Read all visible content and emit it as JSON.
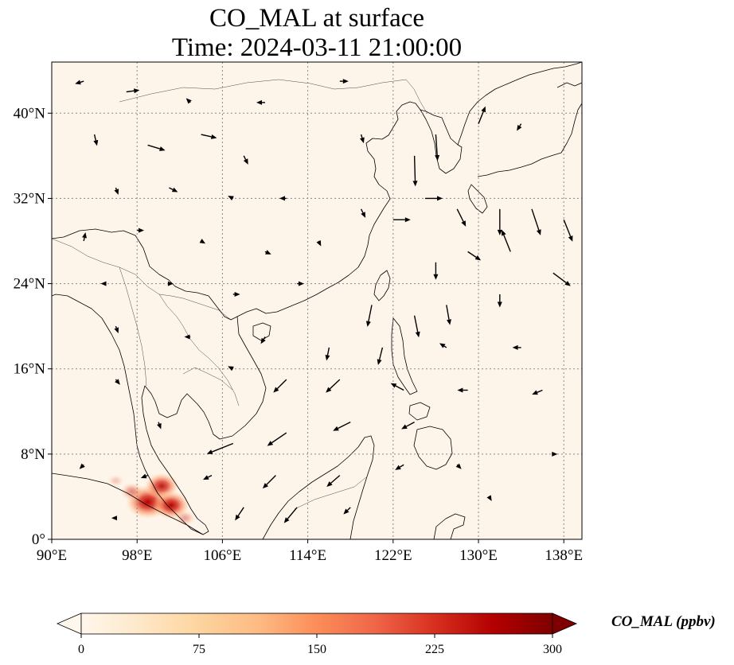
{
  "map": {
    "title_line1": "CO_MAL at surface",
    "title_line2": "Time: 2024-03-11 21:00:00",
    "projection": "PlateCarree",
    "extent": {
      "lon": [
        90,
        139.7
      ],
      "lat": [
        0,
        44.8
      ]
    },
    "x_ticks": [
      {
        "value": 90,
        "label": "90°E"
      },
      {
        "value": 98,
        "label": "98°E"
      },
      {
        "value": 106,
        "label": "106°E"
      },
      {
        "value": 114,
        "label": "114°E"
      },
      {
        "value": 122,
        "label": "122°E"
      },
      {
        "value": 130,
        "label": "130°E"
      },
      {
        "value": 138,
        "label": "138°E"
      }
    ],
    "y_ticks": [
      {
        "value": 0,
        "label": "0°"
      },
      {
        "value": 8,
        "label": "8°N"
      },
      {
        "value": 16,
        "label": "16°N"
      },
      {
        "value": 24,
        "label": "24°N"
      },
      {
        "value": 32,
        "label": "32°N"
      },
      {
        "value": 40,
        "label": "40°N"
      }
    ],
    "gridlines": true,
    "background_color": "#fef5ea",
    "coastline_color": "#000000"
  },
  "colorbar": {
    "label": "CO_MAL (ppbv)",
    "cmap": "OrRd",
    "min": 0,
    "max": 300,
    "extend": "both",
    "ticks": [
      {
        "value": 0,
        "label": "0"
      },
      {
        "value": 75,
        "label": "75"
      },
      {
        "value": 150,
        "label": "150"
      },
      {
        "value": 225,
        "label": "225"
      },
      {
        "value": 300,
        "label": "300"
      }
    ],
    "stops": [
      "#fff7ec",
      "#fee8c8",
      "#fdd49e",
      "#fdbb84",
      "#fc8d59",
      "#ef6548",
      "#d7301f",
      "#b30000",
      "#7f0000"
    ]
  },
  "hotspots": [
    {
      "lon": 99.0,
      "lat": 3.5,
      "value": 260
    },
    {
      "lon": 100.3,
      "lat": 5.0,
      "value": 180
    },
    {
      "lon": 101.2,
      "lat": 3.2,
      "value": 200
    },
    {
      "lon": 97.5,
      "lat": 4.5,
      "value": 90
    },
    {
      "lon": 102.5,
      "lat": 2.0,
      "value": 70
    },
    {
      "lon": 96.0,
      "lat": 5.5,
      "value": 40
    }
  ],
  "wind_vectors": [
    {
      "lon": 93,
      "lat": 43,
      "u": -1,
      "v": -0.3
    },
    {
      "lon": 97,
      "lat": 42,
      "u": 1.5,
      "v": 0.2
    },
    {
      "lon": 103,
      "lat": 41,
      "u": -0.5,
      "v": 0.5
    },
    {
      "lon": 110,
      "lat": 41,
      "u": -1,
      "v": 0
    },
    {
      "lon": 117,
      "lat": 43,
      "u": 1,
      "v": 0
    },
    {
      "lon": 94,
      "lat": 38,
      "u": 0.3,
      "v": -1.3
    },
    {
      "lon": 99,
      "lat": 37,
      "u": 2,
      "v": -0.6
    },
    {
      "lon": 104,
      "lat": 38,
      "u": 1.8,
      "v": -0.4
    },
    {
      "lon": 108,
      "lat": 36,
      "u": 0.5,
      "v": -1
    },
    {
      "lon": 119,
      "lat": 38,
      "u": 0.3,
      "v": -1
    },
    {
      "lon": 124,
      "lat": 36,
      "u": 0.1,
      "v": -3.5
    },
    {
      "lon": 126,
      "lat": 38,
      "u": 0.2,
      "v": -3
    },
    {
      "lon": 130,
      "lat": 39,
      "u": 0.8,
      "v": 2
    },
    {
      "lon": 134,
      "lat": 39,
      "u": -0.5,
      "v": -0.8
    },
    {
      "lon": 96,
      "lat": 33,
      "u": 0.3,
      "v": -0.8
    },
    {
      "lon": 101,
      "lat": 33,
      "u": 1,
      "v": -0.5
    },
    {
      "lon": 107,
      "lat": 32,
      "u": -0.6,
      "v": 0.3
    },
    {
      "lon": 112,
      "lat": 32,
      "u": -0.8,
      "v": 0
    },
    {
      "lon": 119,
      "lat": 31,
      "u": 0.5,
      "v": -1
    },
    {
      "lon": 122,
      "lat": 30,
      "u": 2,
      "v": 0
    },
    {
      "lon": 125,
      "lat": 32,
      "u": 2,
      "v": 0
    },
    {
      "lon": 128,
      "lat": 31,
      "u": 1,
      "v": -2
    },
    {
      "lon": 132,
      "lat": 31,
      "u": 0,
      "v": -3
    },
    {
      "lon": 135,
      "lat": 31,
      "u": 1,
      "v": -3
    },
    {
      "lon": 138,
      "lat": 30,
      "u": 1,
      "v": -2.5
    },
    {
      "lon": 93,
      "lat": 28,
      "u": 0.2,
      "v": 1
    },
    {
      "lon": 98,
      "lat": 29,
      "u": 0.8,
      "v": 0
    },
    {
      "lon": 104,
      "lat": 28,
      "u": 0.5,
      "v": -0.3
    },
    {
      "lon": 110,
      "lat": 27,
      "u": 0.7,
      "v": -0.3
    },
    {
      "lon": 115,
      "lat": 28,
      "u": 0.3,
      "v": -0.6
    },
    {
      "lon": 126,
      "lat": 26,
      "u": 0,
      "v": -2
    },
    {
      "lon": 129,
      "lat": 27,
      "u": 1.5,
      "v": -1
    },
    {
      "lon": 133,
      "lat": 27,
      "u": -1,
      "v": 2.5
    },
    {
      "lon": 137,
      "lat": 25,
      "u": 2,
      "v": -1.5
    },
    {
      "lon": 95,
      "lat": 24,
      "u": -0.5,
      "v": 0
    },
    {
      "lon": 101,
      "lat": 24,
      "u": 0.5,
      "v": 0
    },
    {
      "lon": 107,
      "lat": 23,
      "u": 0.8,
      "v": 0
    },
    {
      "lon": 113,
      "lat": 24,
      "u": 0.8,
      "v": 0
    },
    {
      "lon": 120,
      "lat": 22,
      "u": -0.5,
      "v": -2.5
    },
    {
      "lon": 124,
      "lat": 21,
      "u": 0.5,
      "v": -2.5
    },
    {
      "lon": 127,
      "lat": 22,
      "u": 0.4,
      "v": -2.3
    },
    {
      "lon": 132,
      "lat": 23,
      "u": 0,
      "v": -1.5
    },
    {
      "lon": 96,
      "lat": 20,
      "u": 0.3,
      "v": -0.8
    },
    {
      "lon": 103,
      "lat": 19,
      "u": -0.7,
      "v": 0
    },
    {
      "lon": 110,
      "lat": 19,
      "u": -0.5,
      "v": -0.8
    },
    {
      "lon": 116,
      "lat": 18,
      "u": -0.3,
      "v": -1.5
    },
    {
      "lon": 121,
      "lat": 18,
      "u": -0.5,
      "v": -2
    },
    {
      "lon": 127,
      "lat": 18,
      "u": -0.8,
      "v": 0.5
    },
    {
      "lon": 134,
      "lat": 18,
      "u": -1,
      "v": 0
    },
    {
      "lon": 96,
      "lat": 15,
      "u": 0.5,
      "v": -0.6
    },
    {
      "lon": 107,
      "lat": 16,
      "u": -0.6,
      "v": 0.3
    },
    {
      "lon": 112,
      "lat": 15,
      "u": -1.5,
      "v": -1.5
    },
    {
      "lon": 117,
      "lat": 15,
      "u": -1.6,
      "v": -1.5
    },
    {
      "lon": 123,
      "lat": 14,
      "u": -1.5,
      "v": 0.8
    },
    {
      "lon": 129,
      "lat": 14,
      "u": -1.2,
      "v": 0
    },
    {
      "lon": 136,
      "lat": 14,
      "u": -1.2,
      "v": -0.5
    },
    {
      "lon": 100,
      "lat": 11,
      "u": 0.3,
      "v": -0.8
    },
    {
      "lon": 107,
      "lat": 9,
      "u": -3,
      "v": -1.2
    },
    {
      "lon": 112,
      "lat": 10,
      "u": -2.2,
      "v": -1.5
    },
    {
      "lon": 118,
      "lat": 11,
      "u": -2,
      "v": -1
    },
    {
      "lon": 124,
      "lat": 11,
      "u": -1.5,
      "v": -0.8
    },
    {
      "lon": 93,
      "lat": 7,
      "u": -0.5,
      "v": -0.5
    },
    {
      "lon": 99,
      "lat": 6,
      "u": -0.8,
      "v": -0.3
    },
    {
      "lon": 105,
      "lat": 6,
      "u": -1,
      "v": -0.5
    },
    {
      "lon": 111,
      "lat": 6,
      "u": -1.5,
      "v": -1.5
    },
    {
      "lon": 117,
      "lat": 6,
      "u": -1.5,
      "v": -1.3
    },
    {
      "lon": 123,
      "lat": 7,
      "u": -1,
      "v": -0.6
    },
    {
      "lon": 128,
      "lat": 7,
      "u": 0.5,
      "v": -0.5
    },
    {
      "lon": 108,
      "lat": 3,
      "u": -1,
      "v": -1.5
    },
    {
      "lon": 113,
      "lat": 3,
      "u": -1.5,
      "v": -1.8
    },
    {
      "lon": 118,
      "lat": 3,
      "u": -0.8,
      "v": -0.8
    },
    {
      "lon": 96,
      "lat": 2,
      "u": -0.5,
      "v": 0
    },
    {
      "lon": 131,
      "lat": 4,
      "u": 0.3,
      "v": -0.5
    },
    {
      "lon": 137,
      "lat": 8,
      "u": 0.5,
      "v": 0
    }
  ]
}
